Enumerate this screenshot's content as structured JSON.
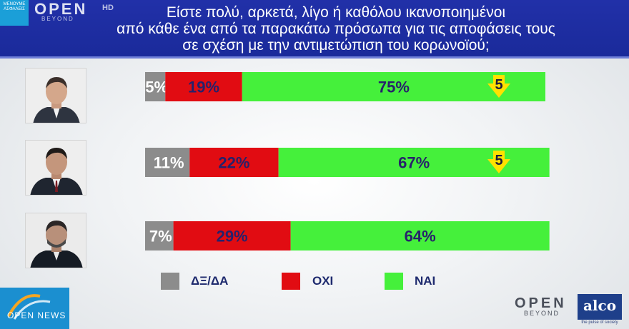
{
  "header": {
    "title_lines": [
      "Είστε πολύ, αρκετά, λίγο ή καθόλου ικανοποιημένοι",
      "από κάθε ένα από τα παρακάτω πρόσωπα για τις αποφάσεις τους",
      "σε σχέση με την αντιμετώπιση του κορωνοϊού;"
    ],
    "channel": "OPEN",
    "channel_sub": "BEYOND",
    "hd": "HD",
    "corner_badge": "ΜΕΝΟΥΜΕ ΑΣΦΑΛΕΙΣ"
  },
  "colors": {
    "dk": "#8c8c8c",
    "no": "#e10c12",
    "yes": "#45f03b",
    "label_dark": "#27216b",
    "label_grey": "#ffffff",
    "arrow": "#ffe100"
  },
  "chart_data": {
    "type": "bar",
    "stacked": true,
    "orientation": "horizontal",
    "rows": [
      "person-1",
      "person-2",
      "person-3"
    ],
    "series": [
      {
        "name": "ΔΞ/ΔΑ",
        "key": "dk",
        "values": [
          5,
          11,
          7
        ],
        "labels": [
          "5%",
          "11%",
          "7%"
        ]
      },
      {
        "name": "ΟΧΙ",
        "key": "no",
        "values": [
          19,
          22,
          29
        ],
        "labels": [
          "19%",
          "22%",
          "29%"
        ]
      },
      {
        "name": "ΝΑΙ",
        "key": "yes",
        "values": [
          75,
          67,
          64
        ],
        "labels": [
          "75%",
          "67%",
          "64%"
        ]
      }
    ],
    "change_arrows": [
      {
        "row": 0,
        "value": "5",
        "direction": "down"
      },
      {
        "row": 1,
        "value": "5",
        "direction": "down"
      }
    ],
    "xlim": [
      0,
      100
    ]
  },
  "legend": [
    {
      "key": "dk",
      "label": "ΔΞ/ΔΑ"
    },
    {
      "key": "no",
      "label": "ΟΧΙ"
    },
    {
      "key": "yes",
      "label": "ΝΑΙ"
    }
  ],
  "footer": {
    "open_news": "OPEN NEWS",
    "open_logo": "OPEN",
    "open_sub": "BEYOND",
    "alco": "alco",
    "alco_tagline": "the pulse of society"
  }
}
